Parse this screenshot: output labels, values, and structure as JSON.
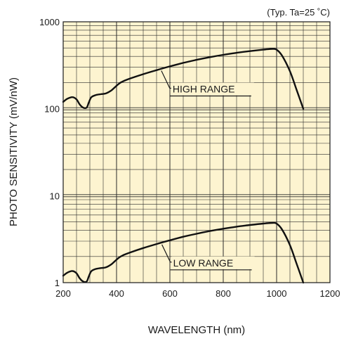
{
  "chart_data": {
    "type": "line",
    "title": "",
    "annotation": "(Typ. Ta=25 ˚C)",
    "xlabel": "WAVELENGTH (nm)",
    "ylabel": "PHOTO SENSITIVITY (mV/nW)",
    "xlim": [
      200,
      1200
    ],
    "ylim": [
      1,
      1000
    ],
    "yscale": "log",
    "x_ticks": [
      200,
      400,
      600,
      800,
      1000,
      1200
    ],
    "y_ticks": [
      1,
      10,
      100,
      1000
    ],
    "grid": true,
    "plot_background": "#fdf4d0",
    "line_color": "#111111",
    "series": [
      {
        "name": "HIGH RANGE",
        "x": [
          200,
          215,
          235,
          250,
          262,
          275,
          288,
          296,
          305,
          320,
          340,
          360,
          380,
          395,
          410,
          425,
          450,
          500,
          550,
          600,
          650,
          700,
          750,
          800,
          850,
          900,
          950,
          985,
          1000,
          1020,
          1050,
          1075,
          1100
        ],
        "y": [
          120,
          130,
          136,
          128,
          112,
          103,
          103,
          118,
          135,
          143,
          147,
          150,
          162,
          178,
          195,
          207,
          222,
          250,
          278,
          307,
          337,
          365,
          392,
          417,
          440,
          460,
          478,
          487,
          478,
          410,
          270,
          165,
          100
        ]
      },
      {
        "name": "LOW RANGE",
        "x": [
          200,
          215,
          235,
          250,
          262,
          275,
          288,
          296,
          305,
          320,
          340,
          360,
          380,
          395,
          410,
          425,
          450,
          500,
          550,
          600,
          650,
          700,
          750,
          800,
          850,
          900,
          950,
          985,
          1000,
          1020,
          1050,
          1075,
          1100
        ],
        "y": [
          1.2,
          1.3,
          1.36,
          1.28,
          1.12,
          1.03,
          1.03,
          1.18,
          1.35,
          1.43,
          1.47,
          1.5,
          1.62,
          1.78,
          1.95,
          2.07,
          2.22,
          2.5,
          2.78,
          3.07,
          3.37,
          3.65,
          3.92,
          4.17,
          4.4,
          4.6,
          4.78,
          4.87,
          4.78,
          4.1,
          2.7,
          1.65,
          1.0
        ]
      }
    ],
    "series_labels": [
      {
        "text": "HIGH RANGE",
        "x": 568,
        "y": 290
      },
      {
        "text": "LOW RANGE",
        "x": 570,
        "y": 2.9
      }
    ]
  }
}
